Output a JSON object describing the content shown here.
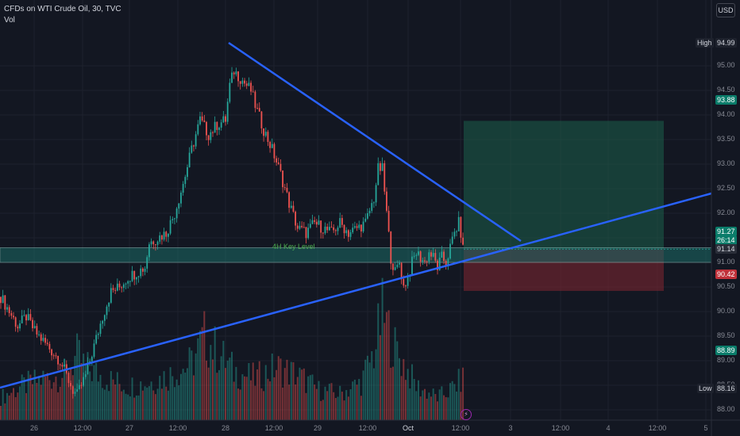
{
  "header": {
    "title": "CFDs on WTI Crude Oil, 30, TVC",
    "indicator": "Vol"
  },
  "currency_button": "USD",
  "price_labels": {
    "high_caption": "High",
    "high_value": "94.99",
    "target_value": "93.88",
    "last_price": "91.27",
    "countdown": "26:14",
    "key_level": "91.14",
    "stop_value": "90.42",
    "sub_price": "88.89",
    "low_caption": "Low",
    "low_value": "88.16"
  },
  "annotation": {
    "key_level_text": "4H Key Level"
  },
  "lightning_icon": "lightning-icon",
  "colors": {
    "background": "#131722",
    "up": "#26a69a",
    "down": "#ef5350",
    "trendline": "#2962ff",
    "target_zone": "#1b5e4b",
    "stop_zone": "#7a2530"
  },
  "chart_data": {
    "type": "candlestick",
    "symbol": "CFDs on WTI Crude Oil, 30, TVC",
    "ylim": [
      87.4,
      95.6
    ],
    "y_ticks": [
      "88.00",
      "88.50",
      "89.00",
      "89.50",
      "90.00",
      "90.50",
      "91.00",
      "91.50",
      "92.00",
      "92.50",
      "93.00",
      "93.50",
      "94.00",
      "94.50",
      "95.00"
    ],
    "x_ticks": [
      "26",
      "12:00",
      "27",
      "12:00",
      "28",
      "12:00",
      "29",
      "12:00",
      "Oct",
      "12:00",
      "3",
      "12:00",
      "4",
      "12:00",
      "5"
    ],
    "high": 94.99,
    "low": 88.16,
    "last_price": 91.27,
    "key_level": 91.14,
    "key_level_zone": [
      91.0,
      91.3
    ],
    "long_position": {
      "entry": 91.27,
      "target": 93.88,
      "stop": 90.42
    },
    "trendlines": [
      {
        "name": "descending",
        "from": {
          "x": "Sep 27 ~22:00",
          "y": 94.99
        },
        "to": {
          "x": "Oct 2 ~15:00",
          "y": 91.1
        }
      },
      {
        "name": "ascending",
        "from": {
          "x": "Sep 25 ~22:00",
          "y": 88.1
        },
        "to": {
          "x": "Oct 5 ~03:00",
          "y": 92.0
        }
      }
    ],
    "close_path": [
      [
        0,
        90.3
      ],
      [
        4,
        90.0
      ],
      [
        8,
        89.7
      ],
      [
        12,
        89.9
      ],
      [
        16,
        89.6
      ],
      [
        20,
        89.4
      ],
      [
        24,
        89.2
      ],
      [
        28,
        89.0
      ],
      [
        30,
        88.8
      ],
      [
        32,
        88.6
      ],
      [
        34,
        88.4
      ],
      [
        36,
        88.3
      ],
      [
        38,
        88.5
      ],
      [
        40,
        88.7
      ],
      [
        44,
        89.3
      ],
      [
        48,
        89.9
      ],
      [
        52,
        90.4
      ],
      [
        56,
        90.5
      ],
      [
        60,
        90.7
      ],
      [
        64,
        90.8
      ],
      [
        68,
        90.9
      ],
      [
        70,
        91.4
      ],
      [
        74,
        91.5
      ],
      [
        78,
        91.6
      ],
      [
        82,
        92.0
      ],
      [
        86,
        92.6
      ],
      [
        90,
        93.3
      ],
      [
        94,
        93.9
      ],
      [
        98,
        93.6
      ],
      [
        102,
        93.8
      ],
      [
        106,
        93.9
      ],
      [
        108,
        94.6
      ],
      [
        110,
        94.9
      ],
      [
        114,
        94.7
      ],
      [
        118,
        94.5
      ],
      [
        120,
        94.2
      ],
      [
        124,
        93.7
      ],
      [
        128,
        93.3
      ],
      [
        132,
        92.8
      ],
      [
        136,
        92.2
      ],
      [
        140,
        91.7
      ],
      [
        144,
        91.6
      ],
      [
        148,
        91.8
      ],
      [
        152,
        91.7
      ],
      [
        156,
        91.6
      ],
      [
        160,
        91.8
      ],
      [
        164,
        91.6
      ],
      [
        168,
        91.7
      ],
      [
        172,
        91.8
      ],
      [
        176,
        92.3
      ],
      [
        178,
        92.9
      ],
      [
        180,
        92.9
      ],
      [
        182,
        92.0
      ],
      [
        184,
        91.1
      ],
      [
        186,
        90.8
      ],
      [
        188,
        91.0
      ],
      [
        190,
        90.5
      ],
      [
        192,
        90.7
      ],
      [
        194,
        91.0
      ],
      [
        196,
        91.2
      ],
      [
        198,
        91.1
      ],
      [
        200,
        91.0
      ],
      [
        202,
        91.2
      ],
      [
        204,
        91.1
      ],
      [
        206,
        90.9
      ],
      [
        208,
        91.1
      ],
      [
        210,
        91.0
      ],
      [
        212,
        91.3
      ],
      [
        214,
        91.6
      ],
      [
        216,
        91.8
      ],
      [
        217,
        91.6
      ],
      [
        218,
        91.27
      ]
    ],
    "volume_profile": [
      [
        0,
        30
      ],
      [
        10,
        45
      ],
      [
        20,
        55
      ],
      [
        30,
        60
      ],
      [
        36,
        85
      ],
      [
        40,
        70
      ],
      [
        50,
        55
      ],
      [
        60,
        45
      ],
      [
        70,
        50
      ],
      [
        80,
        60
      ],
      [
        90,
        75
      ],
      [
        96,
        110
      ],
      [
        104,
        85
      ],
      [
        110,
        65
      ],
      [
        120,
        55
      ],
      [
        130,
        70
      ],
      [
        140,
        60
      ],
      [
        150,
        40
      ],
      [
        160,
        35
      ],
      [
        170,
        50
      ],
      [
        176,
        90
      ],
      [
        180,
        140
      ],
      [
        186,
        95
      ],
      [
        196,
        45
      ],
      [
        206,
        30
      ],
      [
        212,
        40
      ],
      [
        218,
        55
      ]
    ]
  }
}
